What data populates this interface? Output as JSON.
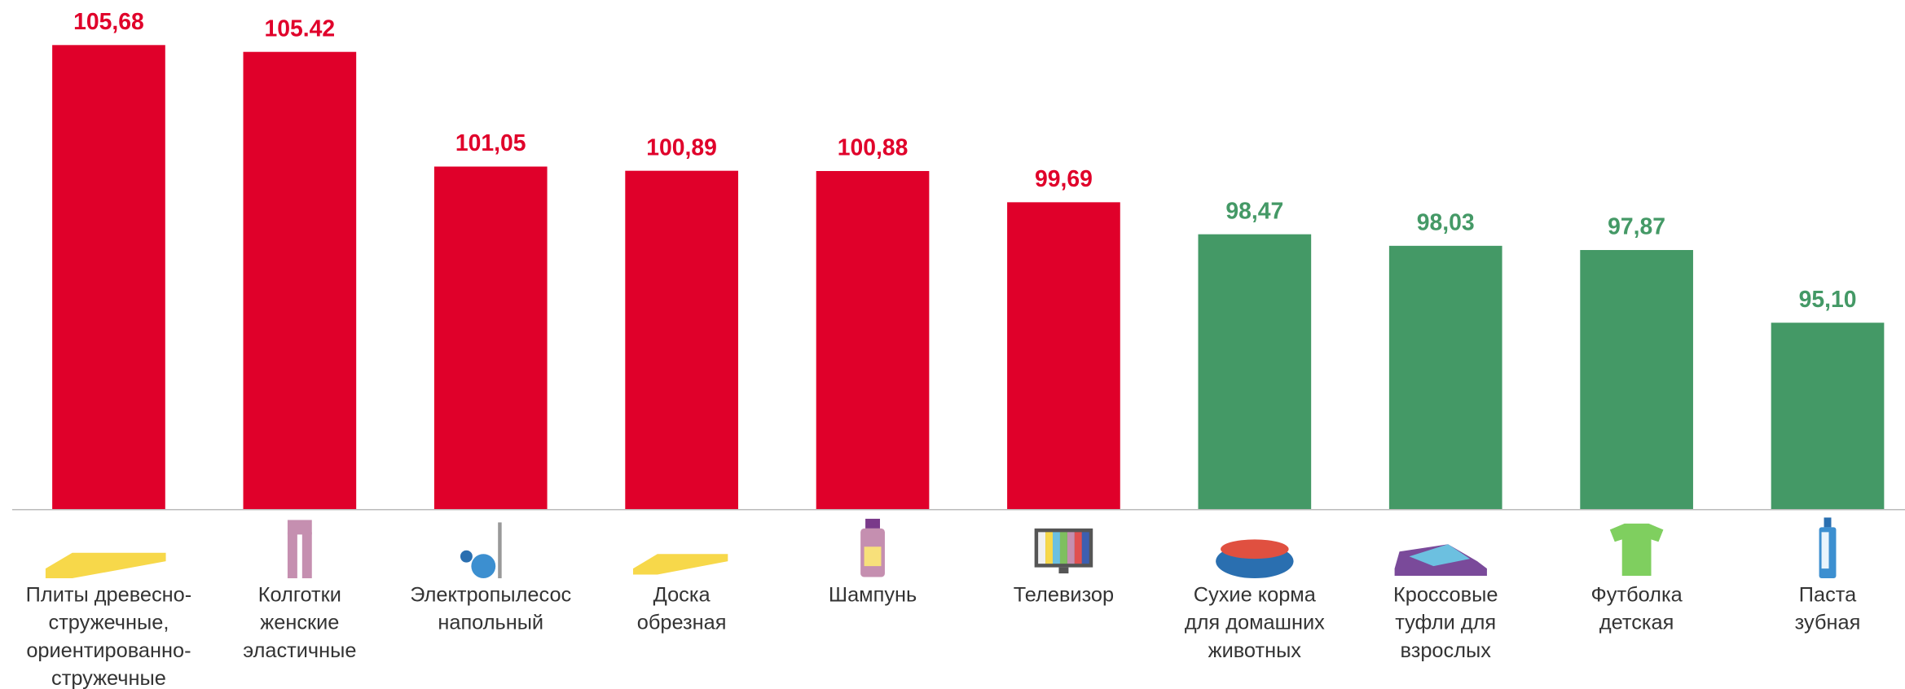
{
  "chart_data": {
    "type": "bar",
    "categories": [
      "Плиты древесно-\nстружечные,\nориентированно-\nстружечные",
      "Колготки\nженские\nэластичные",
      "Электропылесос\nнапольный",
      "Доска\nобрезная",
      "Шампунь",
      "Телевизор",
      "Сухие корма\nдля домашних\nживотных",
      "Кроссовые\nтуфли для\nвзрослых",
      "Футболка\nдетская",
      "Паста\nзубная"
    ],
    "values": [
      105.68,
      105.42,
      101.05,
      100.89,
      100.88,
      99.69,
      98.47,
      98.03,
      97.87,
      95.1
    ],
    "value_labels": [
      "105,68",
      "105.42",
      "101,05",
      "100,89",
      "100,88",
      "99,69",
      "98,47",
      "98,03",
      "97,87",
      "95,10"
    ],
    "colors": [
      "#e0002a",
      "#e0002a",
      "#e0002a",
      "#e0002a",
      "#e0002a",
      "#e0002a",
      "#449966",
      "#449966",
      "#449966",
      "#449966"
    ],
    "ylim": [
      88,
      106
    ]
  }
}
